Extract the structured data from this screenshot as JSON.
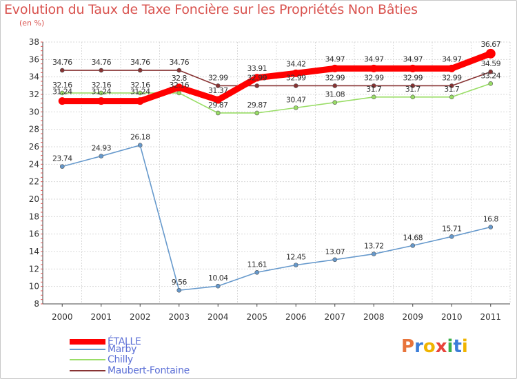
{
  "chart_data": {
    "type": "line",
    "title": "Evolution du Taux de Taxe Foncière sur les Propriétés Non Bâties",
    "subtitle": "(en %)",
    "x": [
      "2000",
      "2001",
      "2002",
      "2003",
      "2004",
      "2005",
      "2006",
      "2007",
      "2008",
      "2009",
      "2010",
      "2011"
    ],
    "ylim": [
      8,
      38
    ],
    "yticks": [
      8,
      10,
      12,
      14,
      16,
      18,
      20,
      22,
      24,
      26,
      28,
      30,
      32,
      34,
      36,
      38
    ],
    "grid": true,
    "series": [
      {
        "name": "ÉTALLE",
        "color": "#ff0000",
        "values": [
          31.24,
          31.24,
          31.24,
          32.8,
          31.37,
          33.91,
          34.42,
          34.97,
          34.97,
          34.97,
          34.97,
          36.67
        ],
        "labels": [
          "31.24",
          "31.24",
          "31.24",
          "32.8",
          "31.37",
          "33.91",
          "34.42",
          "34.97",
          "34.97",
          "34.97",
          "34.97",
          "36.67"
        ]
      },
      {
        "name": "Marby",
        "color": "#6699cc",
        "values": [
          23.74,
          24.93,
          26.18,
          9.56,
          10.04,
          11.61,
          12.45,
          13.07,
          13.72,
          14.68,
          15.71,
          16.8
        ],
        "labels": [
          "23.74",
          "24.93",
          "26.18",
          "9.56",
          "10.04",
          "11.61",
          "12.45",
          "13.07",
          "13.72",
          "14.68",
          "15.71",
          "16.8"
        ]
      },
      {
        "name": "Chilly",
        "color": "#99dd66",
        "values": [
          32.16,
          32.16,
          32.16,
          32.16,
          29.87,
          29.87,
          30.47,
          31.08,
          31.7,
          31.7,
          31.7,
          33.24
        ],
        "labels": [
          "32.16",
          "32.16",
          "32.16",
          "32.16",
          "29.87",
          "29.87",
          "30.47",
          "31.08",
          "31.7",
          "31.7",
          "31.7",
          "33.24"
        ]
      },
      {
        "name": "Maubert-Fontaine",
        "color": "#883333",
        "values": [
          34.76,
          34.76,
          34.76,
          34.76,
          32.99,
          32.99,
          32.99,
          32.99,
          32.99,
          32.99,
          32.99,
          34.59
        ],
        "labels": [
          "34.76",
          "34.76",
          "34.76",
          "34.76",
          "32.99",
          "32.99",
          "32.99",
          "32.99",
          "32.99",
          "32.99",
          "32.99",
          "34.59"
        ]
      }
    ],
    "legend_position": "bottom-left"
  },
  "logo": {
    "text_chars": [
      "P",
      "r",
      "o",
      "x",
      "i",
      "t",
      "i"
    ],
    "colors": [
      "#e8743b",
      "#3b7dd8",
      "#f0b400",
      "#e8443b",
      "#3bb04a",
      "#3b7dd8",
      "#f0b400"
    ]
  }
}
